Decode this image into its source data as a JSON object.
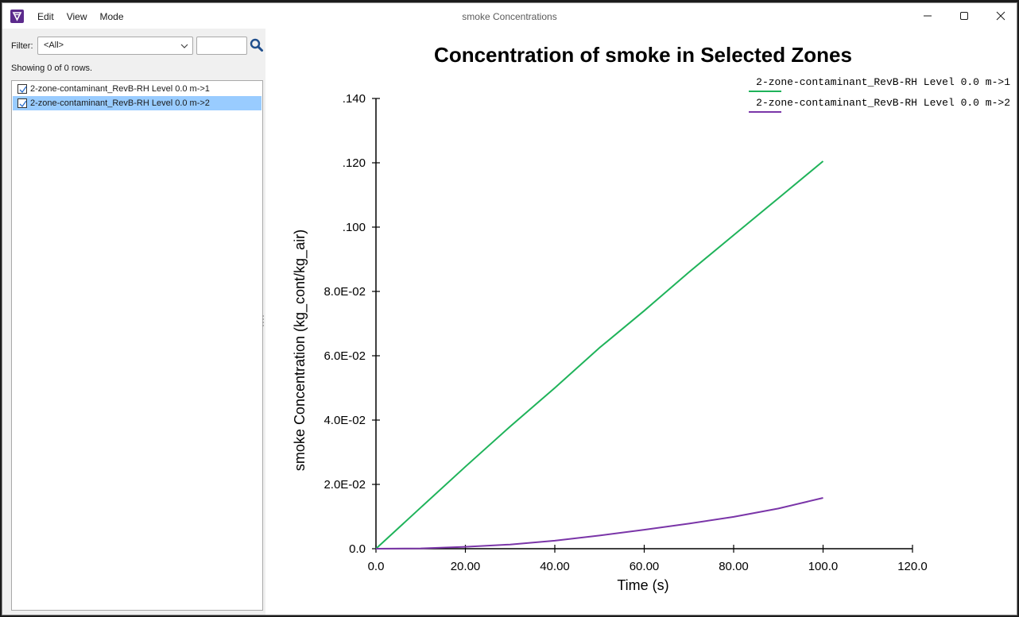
{
  "window": {
    "title": "smoke Concentrations"
  },
  "menu": {
    "items": [
      "Edit",
      "View",
      "Mode"
    ]
  },
  "filter": {
    "label": "Filter:",
    "selected_option": "<All>",
    "text_value": ""
  },
  "status": {
    "rows_text": "Showing 0 of 0 rows."
  },
  "list": {
    "items": [
      {
        "label": "2-zone-contaminant_RevB-RH Level 0.0 m->1",
        "checked": true,
        "selected": false
      },
      {
        "label": "2-zone-contaminant_RevB-RH Level 0.0 m->2",
        "checked": true,
        "selected": true
      }
    ]
  },
  "colors": {
    "series1": "#1fb35a",
    "series2": "#7a35a8",
    "selection": "#99ccff",
    "app_icon": "#5b2a8c"
  },
  "icons": {
    "app": "app-logo-icon",
    "search": "search-icon",
    "minimize": "minimize-icon",
    "maximize": "maximize-icon",
    "close": "close-icon",
    "dropdown": "chevron-down-icon",
    "checkbox": "checkmark-icon"
  },
  "chart_data": {
    "type": "line",
    "title": "Concentration of smoke in Selected Zones",
    "xlabel": "Time (s)",
    "ylabel": "smoke Concentration (kg_cont/kg_air)",
    "xlim": [
      0,
      120
    ],
    "ylim": [
      0,
      0.14
    ],
    "x_ticks": [
      0,
      20,
      40,
      60,
      80,
      100,
      120
    ],
    "x_tick_labels": [
      "0.0",
      "20.00",
      "40.00",
      "60.00",
      "80.00",
      "100.0",
      "120.0"
    ],
    "y_ticks": [
      0,
      0.02,
      0.04,
      0.06,
      0.08,
      0.1,
      0.12,
      0.14
    ],
    "y_tick_labels": [
      "0.0",
      "2.0E-02",
      "4.0E-02",
      "6.0E-02",
      "8.0E-02",
      ".100",
      ".120",
      ".140"
    ],
    "grid": false,
    "legend_position": "top-right",
    "series": [
      {
        "name": "2-zone-contaminant_RevB-RH Level 0.0 m->1",
        "x": [
          0,
          10,
          20,
          30,
          40,
          50,
          60,
          70,
          80,
          90,
          100
        ],
        "y": [
          0,
          0.0128,
          0.0255,
          0.038,
          0.05,
          0.0625,
          0.074,
          0.086,
          0.0975,
          0.109,
          0.1205
        ]
      },
      {
        "name": "2-zone-contaminant_RevB-RH Level 0.0 m->2",
        "x": [
          0,
          10,
          20,
          30,
          40,
          50,
          60,
          70,
          80,
          90,
          100
        ],
        "y": [
          0,
          0.0001,
          0.0006,
          0.0013,
          0.0025,
          0.0041,
          0.0059,
          0.0078,
          0.0099,
          0.0125,
          0.0158
        ]
      }
    ]
  }
}
